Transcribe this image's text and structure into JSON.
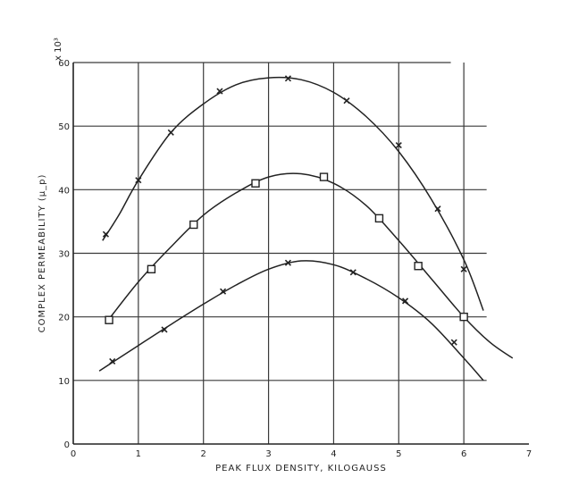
{
  "chart_data": {
    "type": "line",
    "title": "",
    "xlabel": "PEAK FLUX DENSITY,  KILOGAUSS",
    "ylabel": "COMPLEX PERMEABILITY (μ_p)",
    "y_multiplier_label": "x 10³",
    "xlim": [
      0,
      7
    ],
    "ylim": [
      0,
      60
    ],
    "x_ticks": [
      "0",
      "1",
      "2",
      "3",
      "4",
      "5",
      "6",
      "7"
    ],
    "y_ticks": [
      "0",
      "10",
      "20",
      "30",
      "40",
      "50",
      "60"
    ],
    "grid": true,
    "series": [
      {
        "marker": "x",
        "points": [
          [
            0.5,
            33
          ],
          [
            1.0,
            41.5
          ],
          [
            1.5,
            49
          ],
          [
            2.25,
            55.5
          ],
          [
            3.3,
            57.5
          ],
          [
            4.2,
            54
          ],
          [
            5.0,
            47
          ],
          [
            5.6,
            37
          ],
          [
            6.0,
            27.5
          ]
        ],
        "curve": [
          [
            0.45,
            32
          ],
          [
            0.7,
            36
          ],
          [
            1.0,
            41.5
          ],
          [
            1.5,
            49
          ],
          [
            2.0,
            53.5
          ],
          [
            2.5,
            56.5
          ],
          [
            3.0,
            57.6
          ],
          [
            3.5,
            57.3
          ],
          [
            4.0,
            55.3
          ],
          [
            4.5,
            51.5
          ],
          [
            5.0,
            46
          ],
          [
            5.5,
            38.5
          ],
          [
            6.0,
            29
          ],
          [
            6.3,
            21
          ]
        ]
      },
      {
        "marker": "square",
        "points": [
          [
            0.55,
            19.5
          ],
          [
            1.2,
            27.5
          ],
          [
            1.85,
            34.5
          ],
          [
            2.8,
            41
          ],
          [
            3.85,
            42
          ],
          [
            4.7,
            35.5
          ],
          [
            5.3,
            28
          ],
          [
            6.0,
            20
          ]
        ],
        "curve": [
          [
            0.5,
            19
          ],
          [
            1.0,
            25.5
          ],
          [
            1.5,
            31
          ],
          [
            2.0,
            36
          ],
          [
            2.5,
            39.5
          ],
          [
            3.0,
            42
          ],
          [
            3.5,
            42.5
          ],
          [
            4.0,
            41
          ],
          [
            4.5,
            37.5
          ],
          [
            5.0,
            32
          ],
          [
            5.5,
            26
          ],
          [
            6.0,
            20
          ],
          [
            6.4,
            16
          ],
          [
            6.75,
            13.5
          ]
        ]
      },
      {
        "marker": "x",
        "points": [
          [
            0.6,
            13
          ],
          [
            1.4,
            18
          ],
          [
            2.3,
            24
          ],
          [
            3.3,
            28.5
          ],
          [
            4.3,
            27
          ],
          [
            5.1,
            22.5
          ],
          [
            5.85,
            16
          ]
        ],
        "curve": [
          [
            0.4,
            11.5
          ],
          [
            1.0,
            15.5
          ],
          [
            1.5,
            18.8
          ],
          [
            2.0,
            22
          ],
          [
            2.5,
            25
          ],
          [
            3.0,
            27.5
          ],
          [
            3.5,
            28.8
          ],
          [
            4.0,
            28.2
          ],
          [
            4.5,
            26
          ],
          [
            5.0,
            23
          ],
          [
            5.5,
            19
          ],
          [
            6.0,
            13.5
          ],
          [
            6.3,
            10
          ]
        ]
      }
    ]
  }
}
